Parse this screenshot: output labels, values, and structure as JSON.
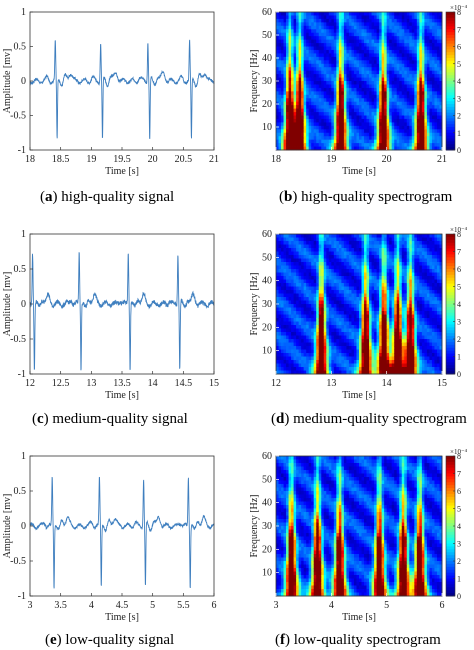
{
  "panels": [
    {
      "label": "a",
      "caption": "high-quality signal"
    },
    {
      "label": "b",
      "caption": "high-quality spectrogram"
    },
    {
      "label": "c",
      "caption": "medium-quality signal"
    },
    {
      "label": "d",
      "caption": "medium-quality spectrogram"
    },
    {
      "label": "e",
      "caption": "low-quality signal"
    },
    {
      "label": "f",
      "caption": "low-quality spectrogram"
    }
  ],
  "chart_data": [
    {
      "type": "line",
      "panel": "a",
      "xlabel": "Time [s]",
      "ylabel": "Amplitude [mv]",
      "xlim": [
        18,
        21
      ],
      "ylim": [
        -1,
        1
      ],
      "xticks": [
        "18",
        "18.5",
        "19",
        "19.5",
        "20",
        "20.5",
        "21"
      ],
      "yticks": [
        "-1",
        "-0.5",
        "0",
        "0.5",
        "1"
      ],
      "beats": [
        18.43,
        19.17,
        19.94,
        20.62
      ],
      "r_peak": 0.58,
      "s_trough": -0.88,
      "line_color": "#3f7fbf"
    },
    {
      "type": "heatmap",
      "panel": "b",
      "xlabel": "Time [s]",
      "ylabel": "Frequency [Hz]",
      "xlim": [
        18,
        21
      ],
      "ylim": [
        0,
        60
      ],
      "xticks": [
        "18",
        "19",
        "20",
        "21"
      ],
      "yticks": [
        "10",
        "20",
        "30",
        "40",
        "50",
        "60"
      ],
      "colorbar_ticks": [
        "0",
        "1",
        "2",
        "3",
        "4",
        "5",
        "6",
        "7",
        "8"
      ],
      "colorbar_exponent": "×10⁻⁴",
      "bursts": [
        18.25,
        18.43,
        19.17,
        19.94,
        20.62
      ]
    },
    {
      "type": "line",
      "panel": "c",
      "xlabel": "Time [s]",
      "ylabel": "Amplitude [mv]",
      "xlim": [
        12,
        15
      ],
      "ylim": [
        -1,
        1
      ],
      "xticks": [
        "12",
        "12.5",
        "13",
        "13.5",
        "14",
        "14.5",
        "15"
      ],
      "yticks": [
        "-1",
        "-0.5",
        "0",
        "0.5",
        "1"
      ],
      "beats": [
        12.06,
        12.82,
        13.62,
        14.43
      ],
      "r_peak": 0.75,
      "s_trough": -0.95,
      "line_color": "#3f7fbf"
    },
    {
      "type": "heatmap",
      "panel": "d",
      "xlabel": "Time [s]",
      "ylabel": "Frequency [Hz]",
      "xlim": [
        12,
        15
      ],
      "ylim": [
        0,
        60
      ],
      "xticks": [
        "12",
        "13",
        "14",
        "15"
      ],
      "yticks": [
        "10",
        "20",
        "30",
        "40",
        "50",
        "60"
      ],
      "colorbar_ticks": [
        "0",
        "1",
        "2",
        "3",
        "4",
        "5",
        "6",
        "7",
        "8"
      ],
      "colorbar_exponent": "×10⁻⁴",
      "bursts": [
        12.82,
        13.62,
        13.95,
        14.2,
        14.43
      ]
    },
    {
      "type": "line",
      "panel": "e",
      "xlabel": "Time [s]",
      "ylabel": "Amplitude [mv]",
      "xlim": [
        3,
        6
      ],
      "ylim": [
        -1,
        1
      ],
      "xticks": [
        "3",
        "3.5",
        "4",
        "4.5",
        "5",
        "5.5",
        "6"
      ],
      "yticks": [
        "-1",
        "-0.5",
        "0",
        "0.5",
        "1"
      ],
      "beats": [
        3.38,
        4.15,
        4.87,
        5.6
      ],
      "r_peak": 0.7,
      "s_trough": -0.9,
      "line_color": "#3f7fbf"
    },
    {
      "type": "heatmap",
      "panel": "f",
      "xlabel": "Time [s]",
      "ylabel": "Frequency [Hz]",
      "xlim": [
        3,
        6
      ],
      "ylim": [
        0,
        60
      ],
      "xticks": [
        "3",
        "4",
        "5",
        "6"
      ],
      "yticks": [
        "10",
        "20",
        "30",
        "40",
        "50",
        "60"
      ],
      "colorbar_ticks": [
        "0",
        "1",
        "2",
        "3",
        "4",
        "5",
        "6",
        "7",
        "8"
      ],
      "colorbar_exponent": "×10⁻⁴",
      "bursts": [
        3.28,
        3.75,
        4.15,
        4.87,
        5.3,
        5.6
      ]
    }
  ]
}
